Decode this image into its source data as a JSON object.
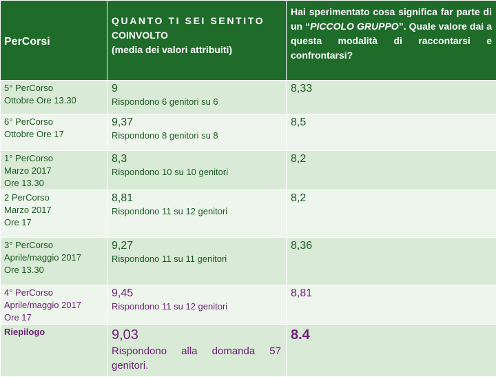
{
  "header": {
    "col1": "PerCorsi",
    "col2_line1": "QUANTO TI SEI SENTITO",
    "col2_line2": "COINVOLTO",
    "col2_line3": "(media dei valori attribuiti)",
    "col3_part1": "Hai sperimentato cosa significa far parte di un “",
    "col3_em": "PICCOLO GRUPPO",
    "col3_part2": "”. Quale valore dai  a questa modalità di raccontarsi e confrontarsi?"
  },
  "rows": [
    {
      "label": [
        "5° PerCorso",
        "Ottobre Ore 13.30"
      ],
      "coinvolto": "9",
      "risposte": "Rispondono 6 genitori su 6",
      "piccolo_gruppo": "8,33"
    },
    {
      "label": [
        "6° PerCorso",
        "Ottobre  Ore 17"
      ],
      "coinvolto": "9,37",
      "risposte": "Rispondono 8 genitori su 8",
      "piccolo_gruppo": "8,5"
    },
    {
      "label": [
        "1° PerCorso",
        "Marzo 2017",
        "Ore 13.30"
      ],
      "coinvolto": "8,3",
      "risposte": "Rispondono 10 su 10 genitori",
      "piccolo_gruppo": "8,2"
    },
    {
      "label": [
        "2 PerCorso",
        "Marzo 2017",
        "Ore 17"
      ],
      "coinvolto": "8,81",
      "risposte": "Rispondono 11 su 12 genitori",
      "piccolo_gruppo": "8,2"
    },
    {
      "label": [
        "3° PerCorso",
        "Aprile/maggio 2017",
        "Ore 13.30"
      ],
      "coinvolto": "9,27",
      "risposte": "Rispondono 11 su 11 genitori",
      "piccolo_gruppo": "8,36"
    },
    {
      "label": [
        "4° PerCorso",
        "Aprile/maggio 2017",
        "Ore 17"
      ],
      "coinvolto": "9,45",
      "risposte": "Rispondono 11 su 12 genitori",
      "piccolo_gruppo": "8,81"
    }
  ],
  "summary": {
    "label": "Riepilogo",
    "coinvolto": "9,03",
    "risposte": "Rispondono alla domanda 57 genitori.",
    "piccolo_gruppo": "8.4"
  },
  "colors": {
    "header_bg": "#1e6b2a",
    "row_dark": "#d9ead6",
    "row_light": "#eef5ec",
    "text_green": "#1e5a24",
    "text_purple": "#6b1f77"
  }
}
